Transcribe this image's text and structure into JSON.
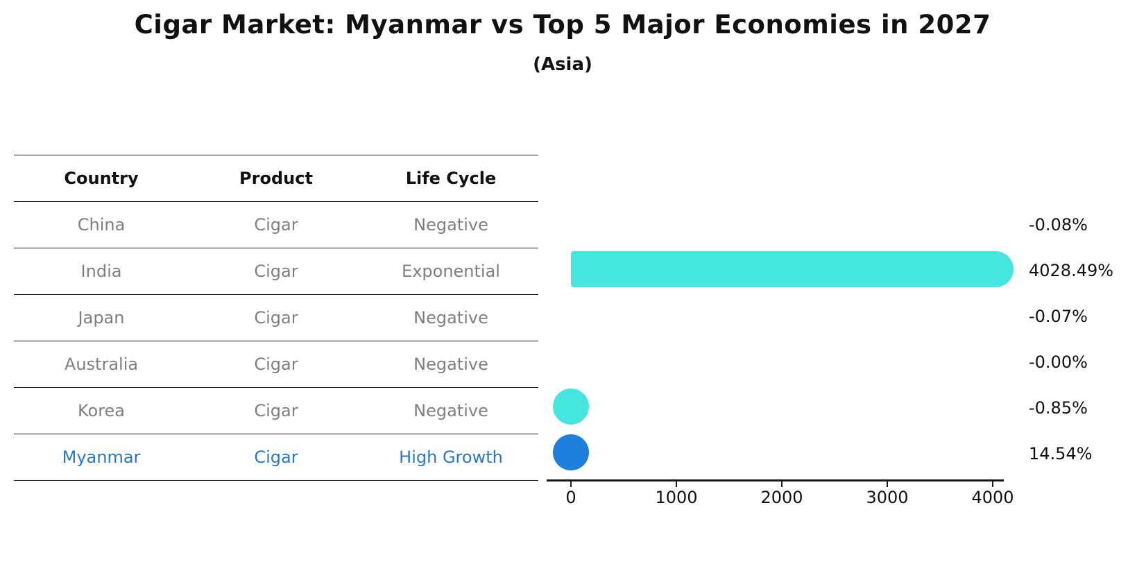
{
  "title": "Cigar Market: Myanmar vs Top 5 Major Economies in 2027",
  "subtitle": "(Asia)",
  "table": {
    "headers": [
      "Country",
      "Product",
      "Life Cycle"
    ],
    "rows": [
      {
        "country": "China",
        "product": "Cigar",
        "life_cycle": "Negative",
        "highlight": false
      },
      {
        "country": "India",
        "product": "Cigar",
        "life_cycle": "Exponential",
        "highlight": false
      },
      {
        "country": "Japan",
        "product": "Cigar",
        "life_cycle": "Negative",
        "highlight": false
      },
      {
        "country": "Australia",
        "product": "Cigar",
        "life_cycle": "Negative",
        "highlight": false
      },
      {
        "country": "Korea",
        "product": "Cigar",
        "life_cycle": "Negative",
        "highlight": false
      },
      {
        "country": "Myanmar",
        "product": "Cigar",
        "life_cycle": "High Growth",
        "highlight": true
      }
    ]
  },
  "chart_data": {
    "type": "bar",
    "orientation": "horizontal",
    "categories": [
      "China",
      "India",
      "Japan",
      "Australia",
      "Korea",
      "Myanmar"
    ],
    "values": [
      -0.08,
      4028.49,
      -0.07,
      -0.0,
      -0.85,
      14.54
    ],
    "value_labels": [
      "-0.08%",
      "4028.49%",
      "-0.07%",
      "-0.00%",
      "-0.85%",
      "14.54%"
    ],
    "x_ticks": [
      0,
      1000,
      2000,
      3000,
      4000
    ],
    "x_tick_labels": [
      "0",
      "1000",
      "2000",
      "3000",
      "4000"
    ],
    "xlim": [
      -230,
      4105
    ],
    "grid": false,
    "legend": false,
    "title": "Cigar Market: Myanmar vs Top 5 Major Economies in 2027",
    "subtitle": "(Asia)",
    "highlight_country": "Myanmar",
    "bar_color": "#45e6df",
    "highlight_color": "#1c80dc"
  },
  "colors": {
    "background": "#ffffff",
    "title_text": "#111111",
    "table_header_text": "#111111",
    "table_text_muted": "#7f7f7f",
    "highlight_text": "#2878c8",
    "line": "#1a1a1a"
  }
}
